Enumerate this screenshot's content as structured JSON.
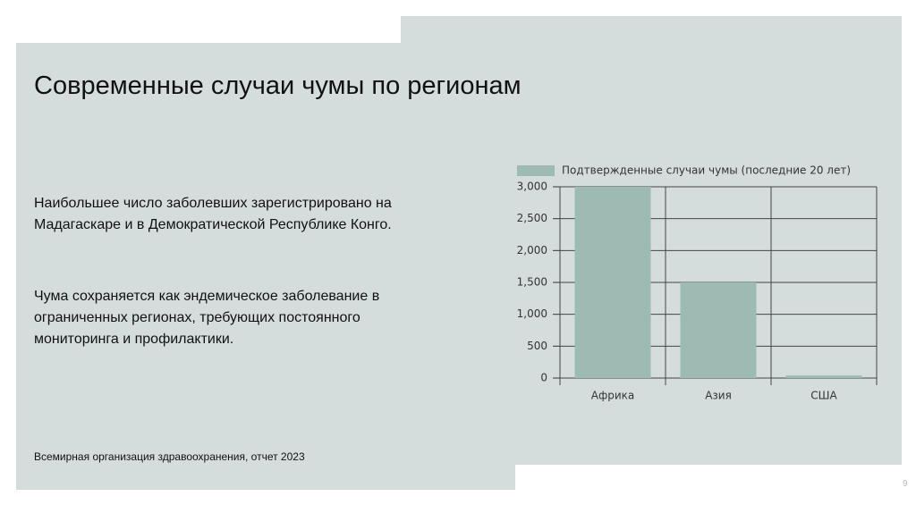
{
  "slide": {
    "title": "Современные случаи чумы по регионам",
    "paragraphs": [
      "Наибольшее число заболевших зарегистрировано на Мадагаскаре и в Демократической Республике Конго.",
      "Чума сохраняется как эндемическое заболевание в ограниченных регионах, требующих постоянного мониторинга и профилактики."
    ],
    "source": "Всемирная организация здравоохранения, отчет 2023",
    "page_number": "9"
  },
  "chart_data": {
    "type": "bar",
    "categories": [
      "Африка",
      "Азия",
      "США"
    ],
    "series": [
      {
        "name": "Подтвержденные случаи чумы (последние 20 лет)",
        "color": "#9dbab3",
        "values": [
          3000,
          1500,
          40
        ]
      }
    ],
    "ylim": [
      0,
      3000
    ],
    "yticks": [
      0,
      500,
      {
        "value": 1000,
        "label": "1,000"
      },
      {
        "value": 1500,
        "label": "1,500"
      },
      {
        "value": 2000,
        "label": "2,000"
      },
      {
        "value": 2500,
        "label": "2,500"
      },
      {
        "value": 3000,
        "label": "3,000"
      }
    ],
    "grid": true
  }
}
